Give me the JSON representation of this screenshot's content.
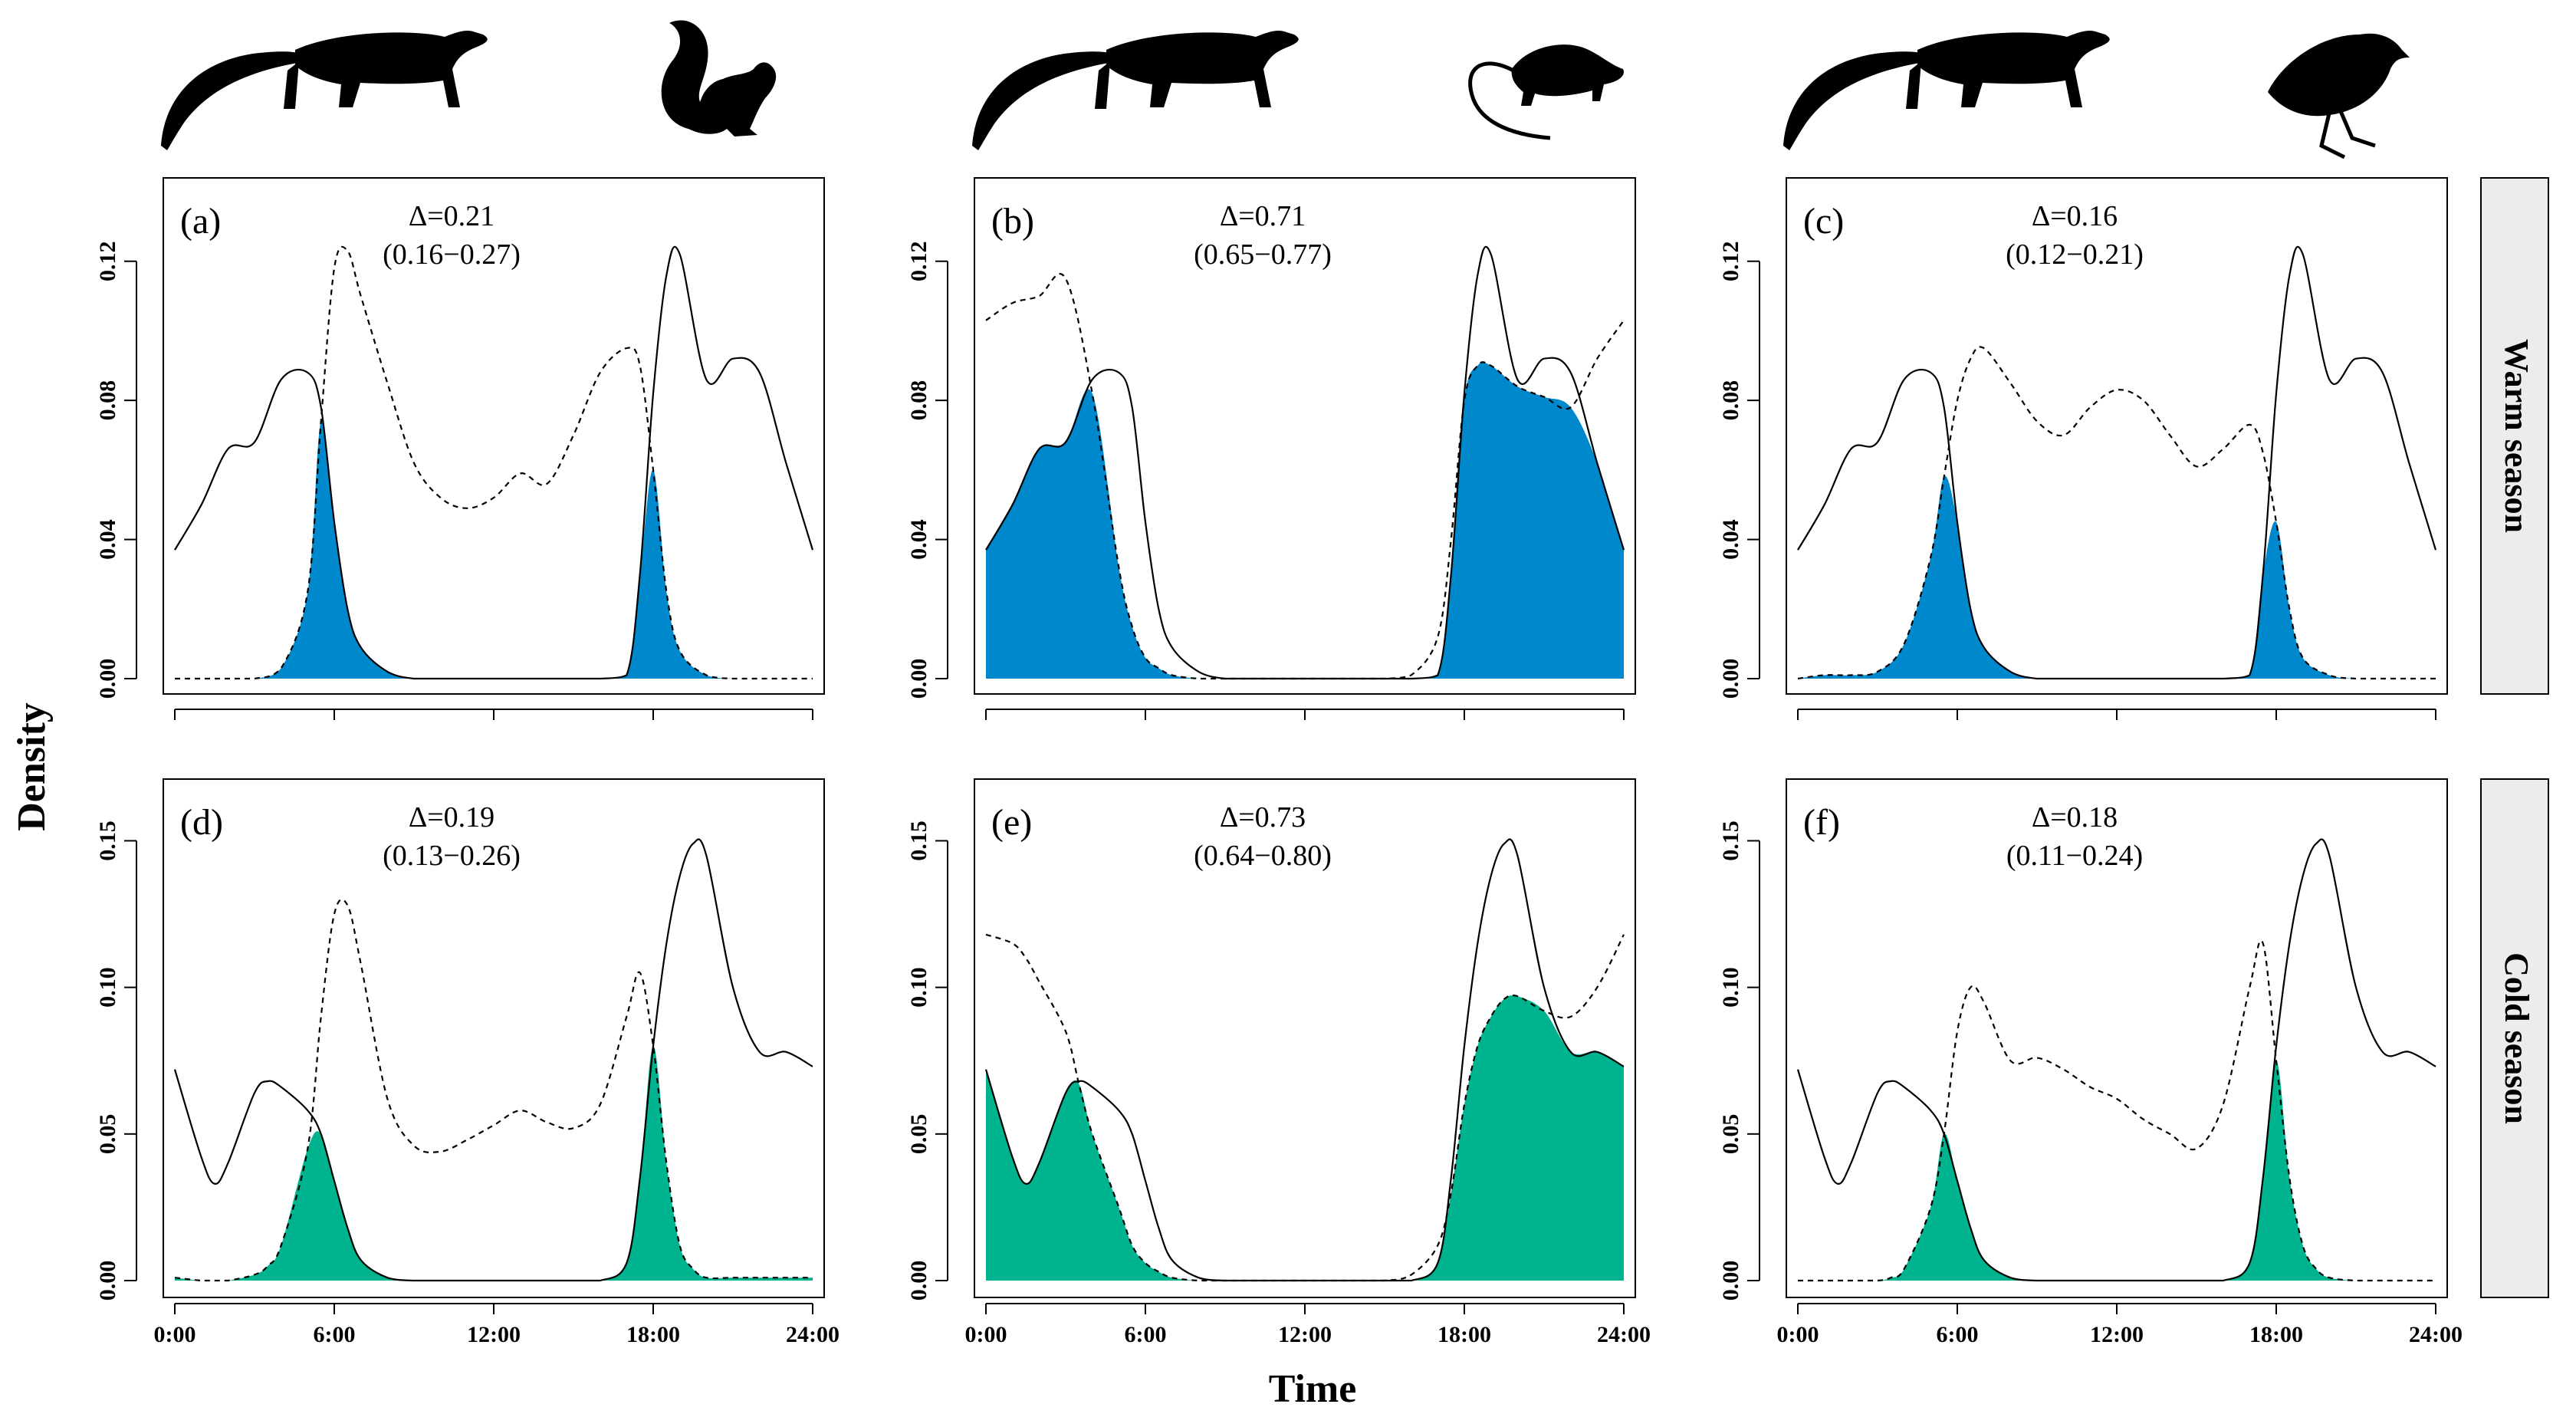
{
  "figure": {
    "ylabel": "Density",
    "xlabel": "Time",
    "xticks": [
      "0:00",
      "6:00",
      "12:00",
      "18:00",
      "24:00"
    ],
    "row_strips": [
      "Warm season",
      "Cold season"
    ],
    "row_yticks": [
      [
        "0.00",
        "0.04",
        "0.08",
        "0.12"
      ],
      [
        "0.00",
        "0.05",
        "0.10",
        "0.15"
      ]
    ],
    "overlap_colors": [
      "#0088cc",
      "#00b38f"
    ],
    "species_icons": [
      [
        "civet-silhouette-icon",
        "squirrel-silhouette-icon"
      ],
      [
        "civet-silhouette-icon",
        "rat-silhouette-icon"
      ],
      [
        "civet-silhouette-icon",
        "pheasant-silhouette-icon"
      ]
    ]
  },
  "chart_data": [
    {
      "type": "area",
      "panel": "(a)",
      "season": "Warm season",
      "overlap": "Δ=0.21",
      "ci": "(0.16−0.27)",
      "xlim": [
        0,
        24
      ],
      "ylim": [
        0,
        0.14
      ],
      "x": [
        0,
        1,
        2,
        3,
        4,
        5,
        5.5,
        6,
        6.5,
        7,
        8,
        9,
        10,
        11,
        12,
        13,
        14,
        15,
        16,
        17,
        17.5,
        18,
        18.5,
        19,
        20,
        21,
        22,
        23,
        24
      ],
      "series": [
        {
          "name": "Civet (solid)",
          "values": [
            0.037,
            0.05,
            0.066,
            0.068,
            0.086,
            0.088,
            0.078,
            0.045,
            0.02,
            0.009,
            0.002,
            0.0,
            0.0,
            0.0,
            0.0,
            0.0,
            0.0,
            0.0,
            0.0,
            0.001,
            0.03,
            0.082,
            0.116,
            0.122,
            0.086,
            0.092,
            0.088,
            0.062,
            0.037
          ]
        },
        {
          "name": "Squirrel (dashed)",
          "values": [
            0.0,
            0.0,
            0.0,
            0.0,
            0.003,
            0.025,
            0.074,
            0.118,
            0.123,
            0.11,
            0.085,
            0.062,
            0.052,
            0.049,
            0.052,
            0.059,
            0.056,
            0.07,
            0.088,
            0.095,
            0.09,
            0.06,
            0.025,
            0.008,
            0.001,
            0.0,
            0.0,
            0.0,
            0.0
          ]
        }
      ]
    },
    {
      "type": "area",
      "panel": "(b)",
      "season": "Warm season",
      "overlap": "Δ=0.71",
      "ci": "(0.65−0.77)",
      "xlim": [
        0,
        24
      ],
      "ylim": [
        0,
        0.14
      ],
      "x": [
        0,
        1,
        2,
        3,
        4,
        5,
        5.5,
        6,
        6.5,
        7,
        8,
        9,
        10,
        11,
        12,
        13,
        14,
        15,
        16,
        17,
        17.5,
        18,
        18.5,
        19,
        20,
        21,
        22,
        23,
        24
      ],
      "series": [
        {
          "name": "Civet (solid)",
          "values": [
            0.037,
            0.05,
            0.066,
            0.068,
            0.086,
            0.088,
            0.078,
            0.045,
            0.02,
            0.009,
            0.002,
            0.0,
            0.0,
            0.0,
            0.0,
            0.0,
            0.0,
            0.0,
            0.0,
            0.001,
            0.03,
            0.082,
            0.116,
            0.122,
            0.086,
            0.092,
            0.088,
            0.062,
            0.037
          ]
        },
        {
          "name": "Rat (dashed)",
          "values": [
            0.103,
            0.108,
            0.11,
            0.115,
            0.082,
            0.032,
            0.015,
            0.006,
            0.003,
            0.001,
            0.0,
            0.0,
            0.0,
            0.0,
            0.0,
            0.0,
            0.0,
            0.0,
            0.001,
            0.012,
            0.04,
            0.08,
            0.09,
            0.09,
            0.084,
            0.081,
            0.078,
            0.092,
            0.103
          ]
        }
      ]
    },
    {
      "type": "area",
      "panel": "(c)",
      "season": "Warm season",
      "overlap": "Δ=0.16",
      "ci": "(0.12−0.21)",
      "xlim": [
        0,
        24
      ],
      "ylim": [
        0,
        0.14
      ],
      "x": [
        0,
        1,
        2,
        3,
        4,
        5,
        5.5,
        6,
        6.5,
        7,
        8,
        9,
        10,
        11,
        12,
        13,
        14,
        15,
        16,
        17,
        17.5,
        18,
        18.5,
        19,
        20,
        21,
        22,
        23,
        24
      ],
      "series": [
        {
          "name": "Civet (solid)",
          "values": [
            0.037,
            0.05,
            0.066,
            0.068,
            0.086,
            0.088,
            0.078,
            0.045,
            0.02,
            0.009,
            0.002,
            0.0,
            0.0,
            0.0,
            0.0,
            0.0,
            0.0,
            0.0,
            0.0,
            0.001,
            0.03,
            0.082,
            0.116,
            0.122,
            0.086,
            0.092,
            0.088,
            0.062,
            0.037
          ]
        },
        {
          "name": "Pheasant (dashed)",
          "values": [
            0.0,
            0.001,
            0.001,
            0.002,
            0.01,
            0.035,
            0.058,
            0.08,
            0.092,
            0.095,
            0.085,
            0.074,
            0.07,
            0.078,
            0.083,
            0.08,
            0.07,
            0.061,
            0.066,
            0.073,
            0.065,
            0.045,
            0.02,
            0.006,
            0.001,
            0.0,
            0.0,
            0.0,
            0.0
          ]
        }
      ]
    },
    {
      "type": "area",
      "panel": "(d)",
      "season": "Cold season",
      "overlap": "Δ=0.19",
      "ci": "(0.13−0.26)",
      "xlim": [
        0,
        24
      ],
      "ylim": [
        0,
        0.17
      ],
      "x": [
        0,
        1,
        1.5,
        2,
        3,
        3.5,
        4,
        5,
        5.5,
        6,
        6.5,
        7,
        8,
        9,
        10,
        11,
        12,
        13,
        14,
        15,
        16,
        17,
        17.5,
        18,
        18.5,
        19,
        19.5,
        20,
        21,
        22,
        23,
        24
      ],
      "series": [
        {
          "name": "Civet (solid)",
          "values": [
            0.072,
            0.042,
            0.033,
            0.04,
            0.064,
            0.068,
            0.066,
            0.058,
            0.05,
            0.034,
            0.018,
            0.007,
            0.001,
            0.0,
            0.0,
            0.0,
            0.0,
            0.0,
            0.0,
            0.0,
            0.0,
            0.006,
            0.035,
            0.08,
            0.115,
            0.138,
            0.149,
            0.145,
            0.1,
            0.078,
            0.078,
            0.073
          ]
        },
        {
          "name": "Squirrel (dashed)",
          "values": [
            0.001,
            0.0,
            0.0,
            0.0,
            0.002,
            0.005,
            0.012,
            0.045,
            0.09,
            0.125,
            0.128,
            0.108,
            0.062,
            0.046,
            0.044,
            0.048,
            0.053,
            0.058,
            0.054,
            0.052,
            0.06,
            0.09,
            0.105,
            0.08,
            0.04,
            0.012,
            0.004,
            0.001,
            0.001,
            0.001,
            0.001,
            0.001
          ]
        }
      ]
    },
    {
      "type": "area",
      "panel": "(e)",
      "season": "Cold season",
      "overlap": "Δ=0.73",
      "ci": "(0.64−0.80)",
      "xlim": [
        0,
        24
      ],
      "ylim": [
        0,
        0.17
      ],
      "x": [
        0,
        1,
        1.5,
        2,
        3,
        3.5,
        4,
        5,
        5.5,
        6,
        6.5,
        7,
        8,
        9,
        10,
        11,
        12,
        13,
        14,
        15,
        16,
        17,
        17.5,
        18,
        18.5,
        19,
        19.5,
        20,
        21,
        22,
        23,
        24
      ],
      "series": [
        {
          "name": "Civet (solid)",
          "values": [
            0.072,
            0.042,
            0.033,
            0.04,
            0.064,
            0.068,
            0.066,
            0.058,
            0.05,
            0.034,
            0.018,
            0.007,
            0.001,
            0.0,
            0.0,
            0.0,
            0.0,
            0.0,
            0.0,
            0.0,
            0.0,
            0.006,
            0.035,
            0.08,
            0.115,
            0.138,
            0.149,
            0.145,
            0.1,
            0.078,
            0.078,
            0.073
          ]
        },
        {
          "name": "Rat (dashed)",
          "values": [
            0.118,
            0.115,
            0.11,
            0.102,
            0.085,
            0.067,
            0.05,
            0.025,
            0.012,
            0.006,
            0.003,
            0.001,
            0.0,
            0.0,
            0.0,
            0.0,
            0.0,
            0.0,
            0.0,
            0.0,
            0.002,
            0.012,
            0.03,
            0.06,
            0.08,
            0.09,
            0.096,
            0.097,
            0.092,
            0.09,
            0.1,
            0.118
          ]
        }
      ]
    },
    {
      "type": "area",
      "panel": "(f)",
      "season": "Cold season",
      "overlap": "Δ=0.18",
      "ci": "(0.11−0.24)",
      "xlim": [
        0,
        24
      ],
      "ylim": [
        0,
        0.17
      ],
      "x": [
        0,
        1,
        1.5,
        2,
        3,
        3.5,
        4,
        5,
        5.5,
        6,
        6.5,
        7,
        8,
        9,
        10,
        11,
        12,
        13,
        14,
        15,
        16,
        17,
        17.5,
        18,
        18.5,
        19,
        19.5,
        20,
        21,
        22,
        23,
        24
      ],
      "series": [
        {
          "name": "Civet (solid)",
          "values": [
            0.072,
            0.042,
            0.033,
            0.04,
            0.064,
            0.068,
            0.066,
            0.058,
            0.05,
            0.034,
            0.018,
            0.007,
            0.001,
            0.0,
            0.0,
            0.0,
            0.0,
            0.0,
            0.0,
            0.0,
            0.0,
            0.006,
            0.035,
            0.08,
            0.115,
            0.138,
            0.149,
            0.145,
            0.1,
            0.078,
            0.078,
            0.073
          ]
        },
        {
          "name": "Pheasant (dashed)",
          "values": [
            0.0,
            0.0,
            0.0,
            0.0,
            0.0,
            0.001,
            0.004,
            0.025,
            0.05,
            0.085,
            0.1,
            0.095,
            0.075,
            0.076,
            0.072,
            0.066,
            0.062,
            0.055,
            0.05,
            0.045,
            0.06,
            0.1,
            0.115,
            0.075,
            0.035,
            0.012,
            0.004,
            0.001,
            0.0,
            0.0,
            0.0,
            0.0
          ]
        }
      ]
    }
  ]
}
